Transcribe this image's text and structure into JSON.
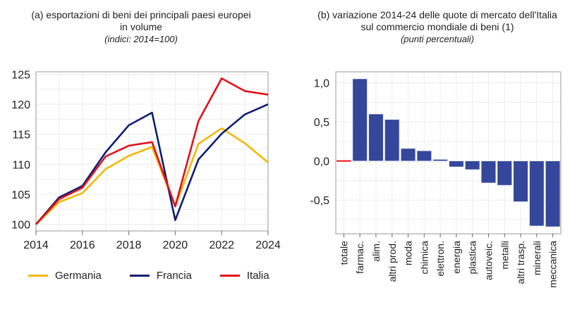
{
  "chart_data": [
    {
      "type": "line",
      "title": "(a) esportazioni di beni dei principali paesi europei",
      "title_line2": "in volume",
      "subtitle": "(indici: 2014=100)",
      "x": [
        2014,
        2015,
        2016,
        2017,
        2018,
        2019,
        2020,
        2021,
        2022,
        2023,
        2024
      ],
      "xticks": [
        "2014",
        "2016",
        "2018",
        "2020",
        "2022",
        "2024"
      ],
      "yticks": [
        "100",
        "105",
        "110",
        "115",
        "120",
        "125"
      ],
      "xlim": [
        2014,
        2024
      ],
      "ylim": [
        98.9,
        125.4
      ],
      "grid": true,
      "legend_position": "bottom",
      "series": [
        {
          "name": "Germania",
          "color": "#f5b800",
          "values": [
            100,
            103.7,
            105.2,
            109.2,
            111.4,
            112.9,
            103.0,
            113.4,
            116.0,
            113.5,
            110.3
          ]
        },
        {
          "name": "Francia",
          "color": "#0d1f73",
          "values": [
            100,
            104.5,
            106.4,
            112.0,
            116.5,
            118.6,
            100.7,
            110.8,
            115.1,
            118.3,
            120.0
          ]
        },
        {
          "name": "Italia",
          "color": "#e3101a",
          "values": [
            100,
            104.2,
            106.1,
            111.3,
            113.1,
            113.7,
            103.0,
            117.2,
            124.3,
            122.2,
            121.6
          ]
        }
      ]
    },
    {
      "type": "bar",
      "title": "(b) variazione 2014-24 delle quote di mercato dell'Italia",
      "title_line2": "sul commercio mondiale di beni (1)",
      "subtitle": "(punti percentuali)",
      "categories": [
        "totale",
        "farmac.",
        "alim.",
        "altri prod.",
        "moda",
        "chimica",
        "elettron.",
        "energia",
        "plastica",
        "autoveic.",
        "metalli",
        "altri trasp.",
        "minerali",
        "meccanica"
      ],
      "values": [
        -0.01,
        1.05,
        0.6,
        0.53,
        0.16,
        0.13,
        0.02,
        -0.075,
        -0.11,
        -0.28,
        -0.31,
        -0.52,
        -0.83,
        -0.84
      ],
      "yticks": [
        "1,0",
        "0,5",
        "0,0",
        "-0,5"
      ],
      "ytick_values": [
        1.0,
        0.5,
        0.0,
        -0.5
      ],
      "ylim": [
        -0.93,
        1.14
      ],
      "grid": true,
      "bar_color": "#34479a",
      "total_color": "#e3101a"
    }
  ]
}
